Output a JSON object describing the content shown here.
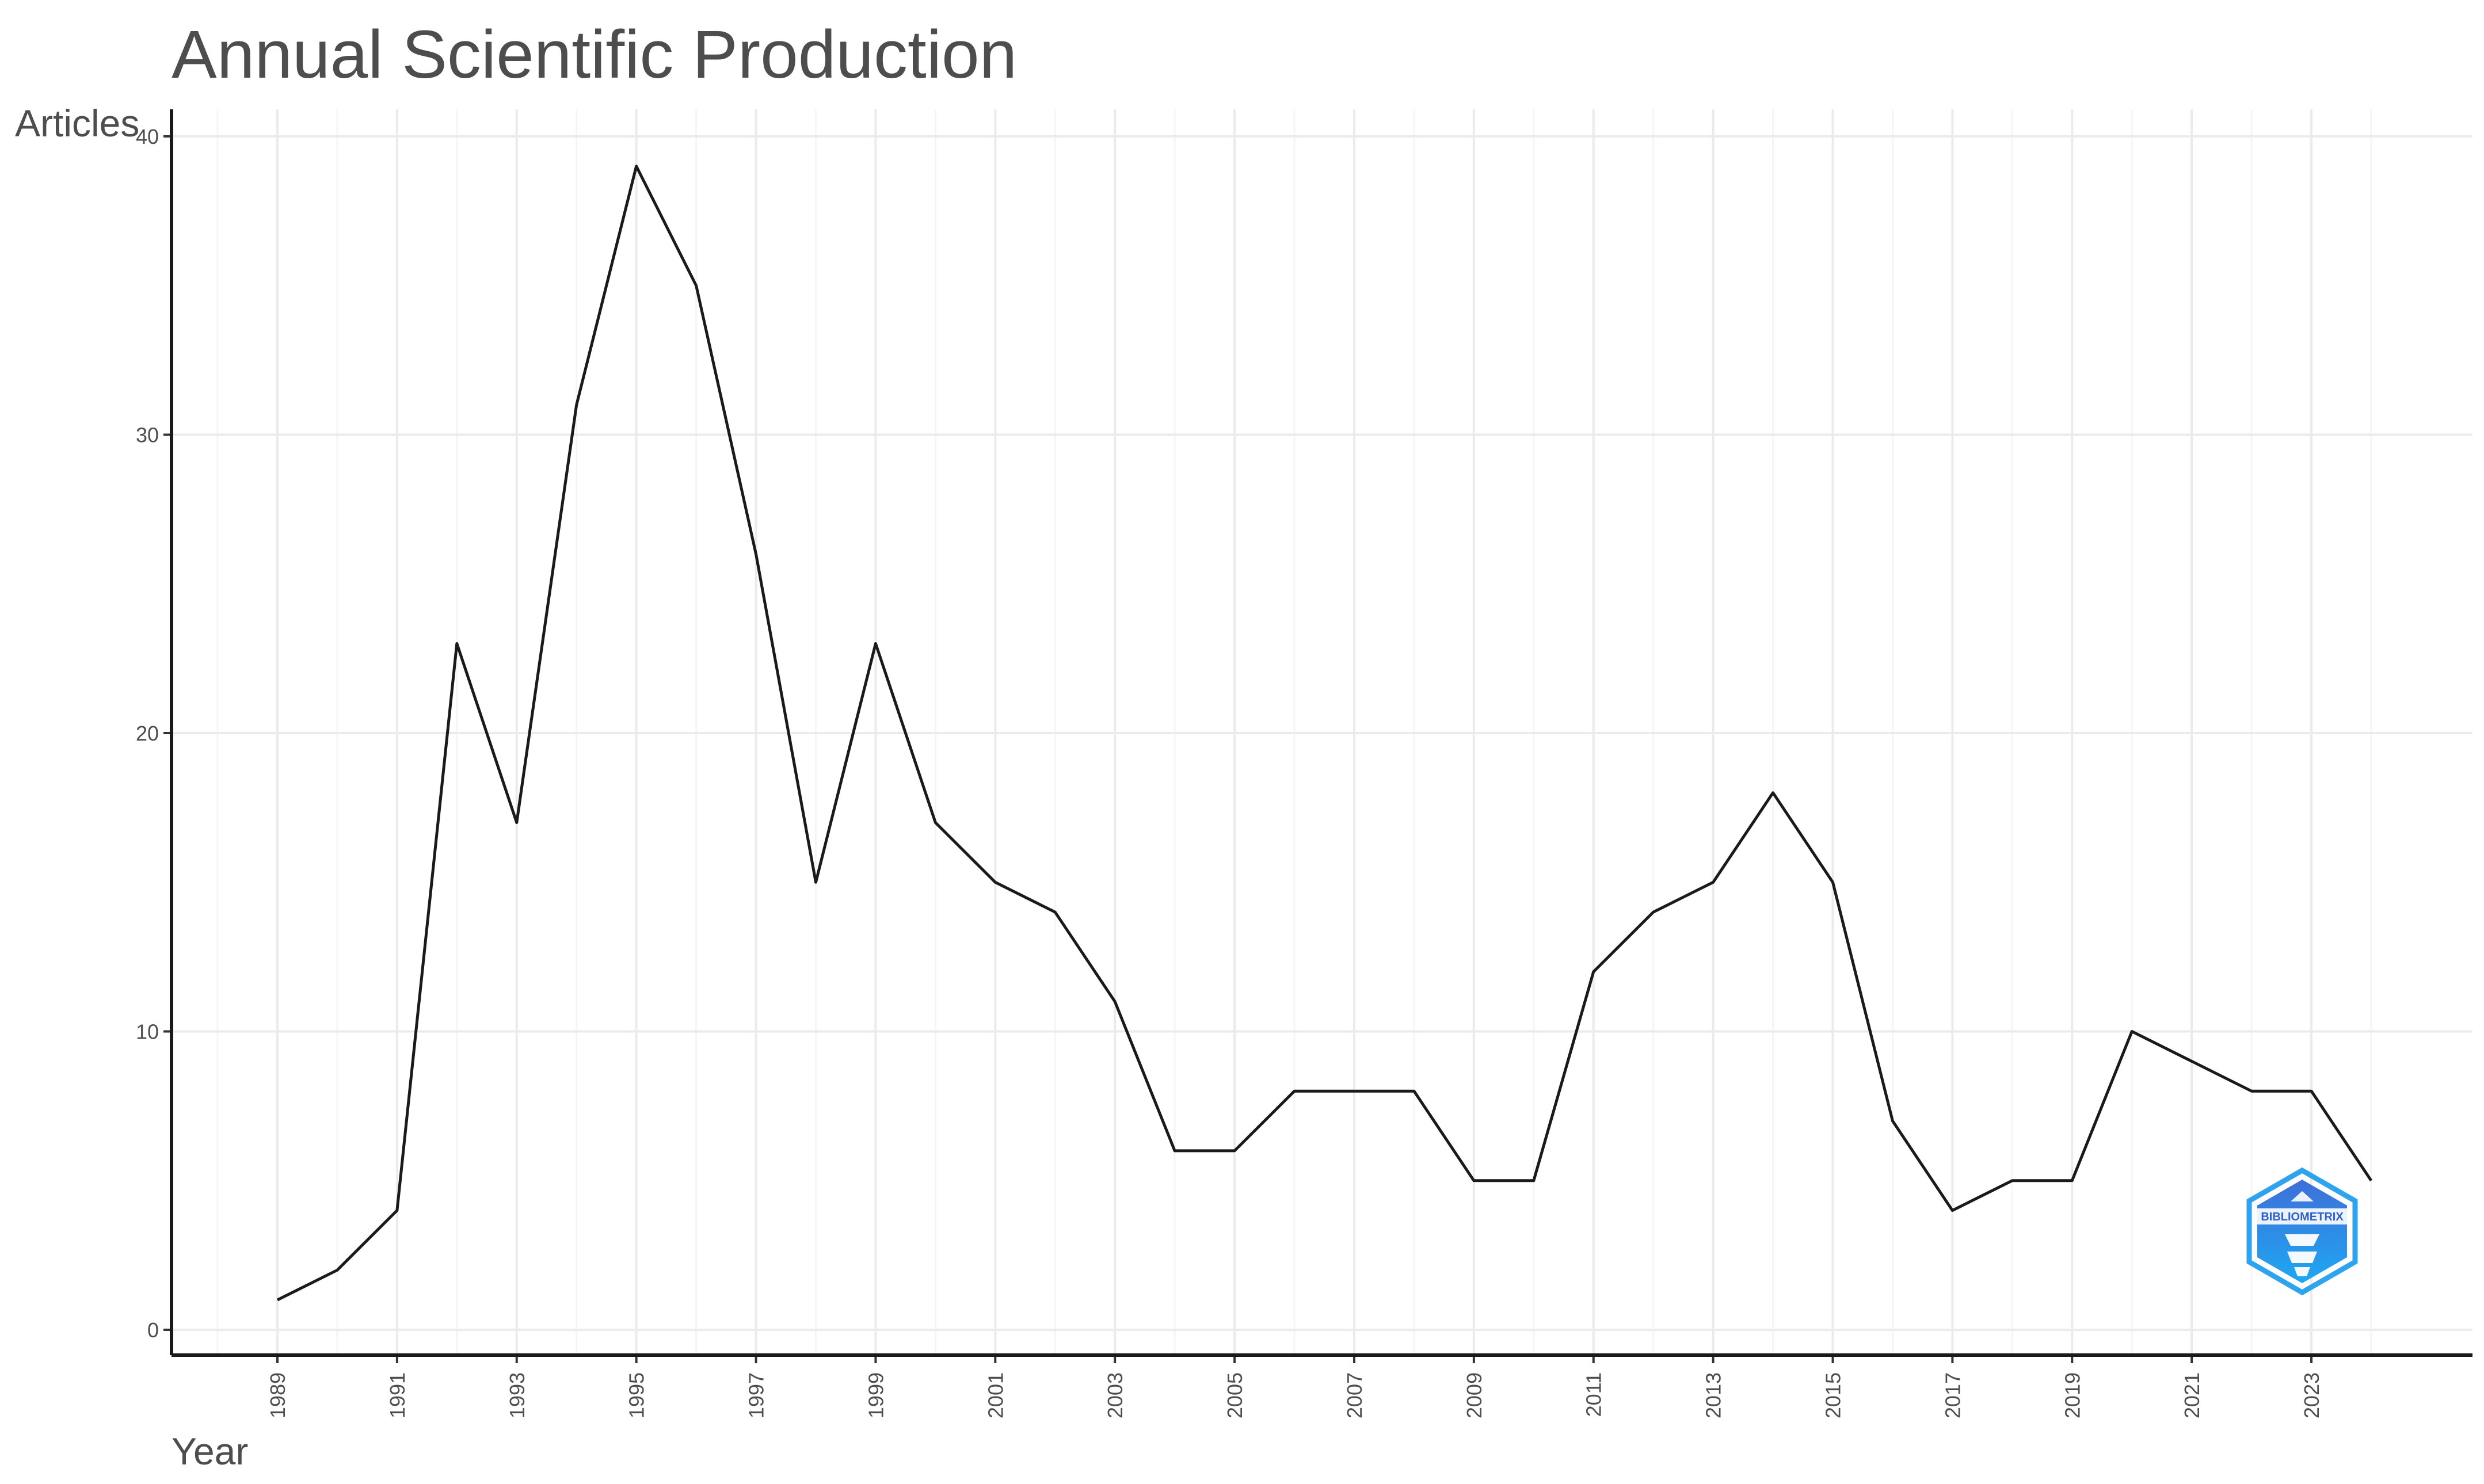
{
  "chart_data": {
    "type": "line",
    "title": "Annual Scientific Production",
    "xlabel": "Year",
    "ylabel": "Articles",
    "x": [
      1989,
      1990,
      1991,
      1992,
      1993,
      1994,
      1995,
      1996,
      1997,
      1998,
      1999,
      2000,
      2001,
      2002,
      2003,
      2004,
      2005,
      2006,
      2007,
      2008,
      2009,
      2010,
      2011,
      2012,
      2013,
      2014,
      2015,
      2016,
      2017,
      2018,
      2019,
      2020,
      2021,
      2022,
      2023,
      2024
    ],
    "series": [
      {
        "values": [
          1,
          2,
          4,
          23,
          17,
          31,
          39,
          35,
          26,
          15,
          23,
          17,
          15,
          14,
          11,
          6,
          6,
          8,
          8,
          8,
          5,
          5,
          12,
          14,
          15,
          18,
          15,
          7,
          4,
          5,
          5,
          10,
          9,
          8,
          8,
          5
        ]
      }
    ],
    "x_ticks": [
      "1989",
      "1991",
      "1993",
      "1995",
      "1997",
      "1999",
      "2001",
      "2003",
      "2005",
      "2007",
      "2009",
      "2011",
      "2013",
      "2015",
      "2017",
      "2019",
      "2021",
      "2023"
    ],
    "y_ticks": [
      "0",
      "10",
      "20",
      "30",
      "40"
    ],
    "ylim": [
      0,
      40
    ],
    "xlim": [
      1989,
      2024
    ],
    "grid": true,
    "legend": "none",
    "colors": {
      "line": "#1a1a1a",
      "grid": "#ebebeb",
      "text": "#4d4d4d"
    },
    "logo": {
      "text": "BIBLIOMETRIX",
      "colors": [
        "#3f6fd8",
        "#1ea8f2"
      ]
    }
  }
}
